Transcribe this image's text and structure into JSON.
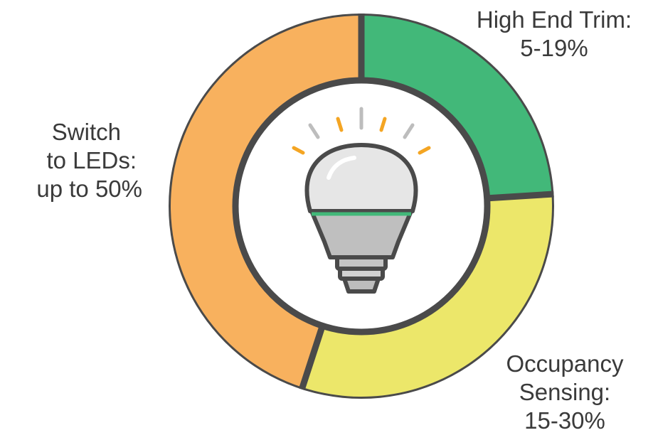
{
  "chart_data": {
    "type": "pie",
    "variant": "donut",
    "segments": [
      {
        "name": "High End Trim",
        "range": "5-19%",
        "label_lines": [
          "High End Trim:",
          "5-19%"
        ],
        "value": 0.24,
        "color": "#42b879"
      },
      {
        "name": "Occupancy Sensing",
        "range": "15-30%",
        "label_lines": [
          "Occupancy",
          "Sensing:",
          "15-30%"
        ],
        "value": 0.31,
        "color": "#ece76a"
      },
      {
        "name": "Switch to LEDs",
        "range": "up to 50%",
        "label_lines": [
          "Switch",
          "to LEDs:",
          "up to 50%"
        ],
        "value": 0.45,
        "color": "#f8b15e"
      }
    ],
    "center_icon": "light-bulb-icon",
    "outline_color": "#4a4a4a",
    "bulb_accent_color": "#42b879",
    "ray_colors": [
      "#f4a523",
      "#bdbdbd"
    ]
  }
}
